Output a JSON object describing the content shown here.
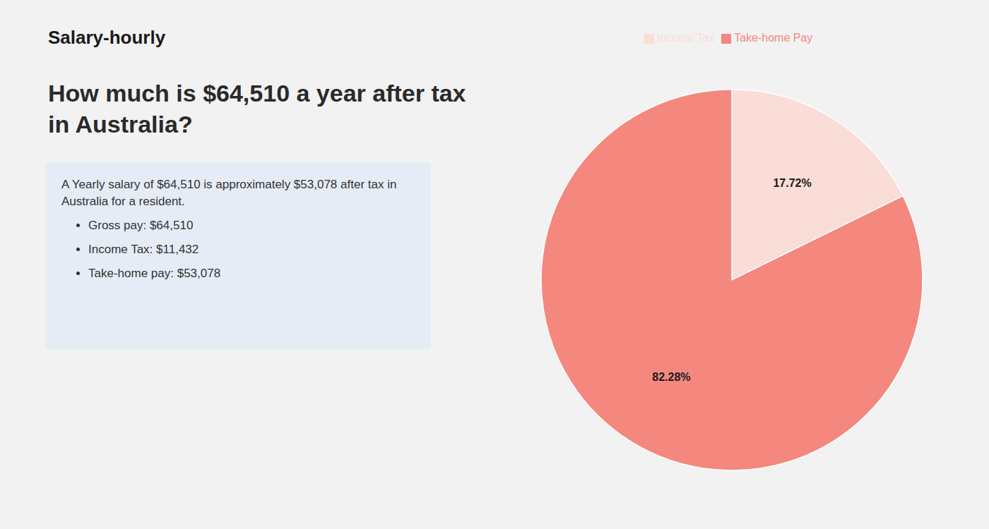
{
  "chart_data": {
    "type": "pie",
    "title": "How much is $64,510 a year after tax in Australia?",
    "annotations": [
      "Salary-hourly",
      "A Yearly salary of $64,510 is approximately $53,078 after tax in",
      "Australia for a resident.",
      "Gross pay: $64,510",
      "Income Tax: $11,432",
      "Take-home pay: $53,078"
    ],
    "categories": [
      "Income Tax",
      "Take-home Pay"
    ],
    "values": [
      17.72,
      82.28
    ],
    "value_labels": [
      "17.72%",
      "82.28%"
    ],
    "colors": [
      "#faddd7",
      "#f4877e"
    ],
    "data_labels": true,
    "legend": "top"
  }
}
